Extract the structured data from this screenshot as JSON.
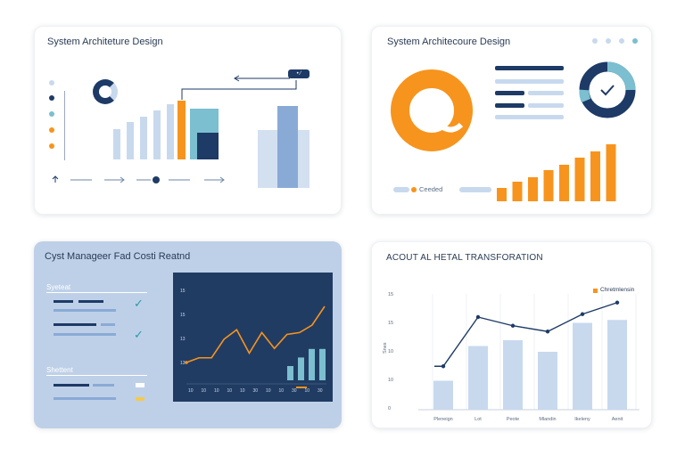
{
  "colors": {
    "navy": "#1e3a66",
    "orange": "#f7941d",
    "teal": "#7bbfd0",
    "light_blue": "#c8d9ee",
    "mid_blue": "#8aaad6",
    "panel_blue": "#bed0e8",
    "check_teal": "#2c9aa8",
    "dark_chart_bg": "#213c63"
  },
  "card1": {
    "title": "System Architeture Design",
    "tag_label": "• ⁄",
    "bottom_icons": [
      "arrow-up-icon",
      "arrow-right-icon",
      "dot-icon",
      "arrow-right-icon"
    ],
    "legend_dots": [
      "#1e3a66",
      "#1e3a66",
      "#7bbfd0",
      "#f7941d",
      "#f7941d"
    ]
  },
  "card2": {
    "title": "System Architecoure Design",
    "legend_label": "Ceeded",
    "pie_level": 0.75,
    "bar_values": [
      1.5,
      2.2,
      2.7,
      3.5,
      4.1,
      4.9,
      5.6,
      6.4
    ]
  },
  "card3": {
    "title": "Cyst Manageer Fad Costi Reatnd",
    "section_labels": [
      "Syeteat",
      "Shettent"
    ],
    "chart": {
      "y_ticks": [
        "15",
        "15",
        "13",
        "13"
      ],
      "x_ticks": [
        "10",
        "10",
        "10",
        "10",
        "10",
        "30",
        "10",
        "10",
        "30",
        "10",
        "30"
      ],
      "line_values": [
        2,
        2.5,
        2.5,
        4.5,
        5.5,
        3,
        5.2,
        3.5,
        5,
        5.2,
        6,
        8
      ],
      "bars": [
        2,
        3.2,
        4.4,
        4.4
      ]
    }
  },
  "card4": {
    "title": "ACOUT AL HETAL TRANSFORATION",
    "legend_label": "Chretmlensin",
    "y_ticks": [
      "15",
      "15",
      "10",
      "10",
      "0"
    ],
    "y_axis_label": "Snes",
    "chart_data": {
      "type": "bar",
      "categories": [
        "Pleneign",
        "Lot",
        "Peote",
        "Mlandin",
        "Ikeleny",
        "Aenit"
      ],
      "values": [
        10,
        22,
        24,
        20,
        30,
        31
      ],
      "line_values": [
        15,
        32,
        29,
        27,
        33,
        37
      ],
      "ylim": [
        0,
        40
      ]
    }
  }
}
